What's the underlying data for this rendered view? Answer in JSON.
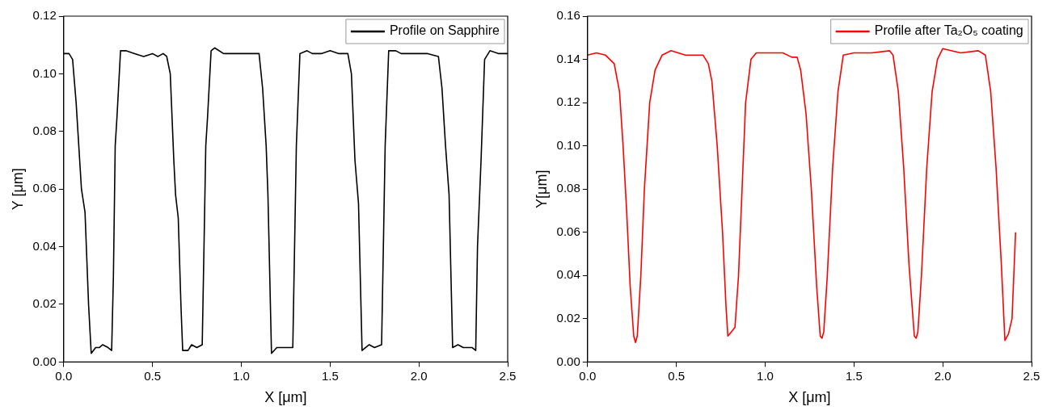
{
  "chart_data": [
    {
      "type": "line",
      "xlabel": "X [μm]",
      "ylabel": "Y [μm]",
      "xlim": [
        0,
        2.5
      ],
      "ylim": [
        0,
        0.12
      ],
      "xticks": [
        {
          "value": 0,
          "label": "0.0"
        },
        {
          "value": 0.5,
          "label": "0.5"
        },
        {
          "value": 1,
          "label": "1.0"
        },
        {
          "value": 1.5,
          "label": "1.5"
        },
        {
          "value": 2,
          "label": "2.0"
        },
        {
          "value": 2.5,
          "label": "2.5"
        }
      ],
      "yticks": [
        {
          "value": 0,
          "label": "0.00"
        },
        {
          "value": 0.02,
          "label": "0.02"
        },
        {
          "value": 0.04,
          "label": "0.04"
        },
        {
          "value": 0.06,
          "label": "0.06"
        },
        {
          "value": 0.08,
          "label": "0.08"
        },
        {
          "value": 0.1,
          "label": "0.10"
        },
        {
          "value": 0.12,
          "label": "0.12"
        }
      ],
      "grid": false,
      "legend": "top right",
      "line_style": "solid",
      "marker": "none",
      "series": [
        {
          "name": "Profile on Sapphire",
          "color": "#000000",
          "x": [
            0,
            0.03,
            0.05,
            0.07,
            0.1,
            0.12,
            0.14,
            0.155,
            0.18,
            0.2,
            0.22,
            0.25,
            0.27,
            0.28,
            0.29,
            0.3,
            0.32,
            0.35,
            0.4,
            0.45,
            0.5,
            0.53,
            0.56,
            0.58,
            0.6,
            0.62,
            0.63,
            0.645,
            0.66,
            0.67,
            0.7,
            0.72,
            0.75,
            0.78,
            0.79,
            0.8,
            0.81,
            0.83,
            0.85,
            0.9,
            0.95,
            1,
            1.05,
            1.1,
            1.12,
            1.14,
            1.15,
            1.17,
            1.2,
            1.25,
            1.29,
            1.3,
            1.31,
            1.33,
            1.37,
            1.4,
            1.45,
            1.5,
            1.55,
            1.6,
            1.62,
            1.64,
            1.66,
            1.68,
            1.72,
            1.75,
            1.79,
            1.8,
            1.81,
            1.83,
            1.87,
            1.9,
            1.95,
            2,
            2.05,
            2.11,
            2.13,
            2.15,
            2.17,
            2.19,
            2.22,
            2.25,
            2.3,
            2.32,
            2.33,
            2.35,
            2.37,
            2.4,
            2.45,
            2.5
          ],
          "values": [
            0.107,
            0.107,
            0.105,
            0.09,
            0.06,
            0.052,
            0.02,
            0.003,
            0.005,
            0.005,
            0.006,
            0.005,
            0.004,
            0.03,
            0.075,
            0.085,
            0.108,
            0.108,
            0.107,
            0.106,
            0.107,
            0.106,
            0.107,
            0.106,
            0.1,
            0.07,
            0.058,
            0.05,
            0.02,
            0.004,
            0.004,
            0.006,
            0.005,
            0.006,
            0.04,
            0.075,
            0.085,
            0.108,
            0.109,
            0.107,
            0.107,
            0.107,
            0.107,
            0.107,
            0.095,
            0.075,
            0.058,
            0.003,
            0.005,
            0.005,
            0.005,
            0.04,
            0.075,
            0.107,
            0.108,
            0.107,
            0.107,
            0.108,
            0.107,
            0.107,
            0.1,
            0.07,
            0.055,
            0.004,
            0.006,
            0.005,
            0.006,
            0.04,
            0.075,
            0.108,
            0.108,
            0.107,
            0.107,
            0.107,
            0.107,
            0.106,
            0.095,
            0.075,
            0.058,
            0.005,
            0.006,
            0.005,
            0.005,
            0.004,
            0.04,
            0.07,
            0.105,
            0.108,
            0.107,
            0.107
          ]
        }
      ]
    },
    {
      "type": "line",
      "xlabel": "X [μm]",
      "ylabel": "Y[μm]",
      "xlim": [
        0,
        2.5
      ],
      "ylim": [
        0,
        0.16
      ],
      "xticks": [
        {
          "value": 0,
          "label": "0.0"
        },
        {
          "value": 0.5,
          "label": "0.5"
        },
        {
          "value": 1,
          "label": "1.0"
        },
        {
          "value": 1.5,
          "label": "1.5"
        },
        {
          "value": 2,
          "label": "2.0"
        },
        {
          "value": 2.5,
          "label": "2.5"
        }
      ],
      "yticks": [
        {
          "value": 0,
          "label": "0.00"
        },
        {
          "value": 0.02,
          "label": "0.02"
        },
        {
          "value": 0.04,
          "label": "0.04"
        },
        {
          "value": 0.06,
          "label": "0.06"
        },
        {
          "value": 0.08,
          "label": "0.08"
        },
        {
          "value": 0.1,
          "label": "0.10"
        },
        {
          "value": 0.12,
          "label": "0.12"
        },
        {
          "value": 0.14,
          "label": "0.14"
        },
        {
          "value": 0.16,
          "label": "0.16"
        }
      ],
      "grid": false,
      "legend": "top right",
      "line_style": "solid",
      "marker": "none",
      "series": [
        {
          "name": "Profile after Ta₂O₅ coating",
          "color": "#ff0000",
          "x": [
            0,
            0.05,
            0.1,
            0.15,
            0.18,
            0.2,
            0.22,
            0.24,
            0.26,
            0.27,
            0.28,
            0.3,
            0.32,
            0.35,
            0.38,
            0.42,
            0.47,
            0.55,
            0.65,
            0.68,
            0.7,
            0.73,
            0.76,
            0.78,
            0.79,
            0.81,
            0.83,
            0.85,
            0.87,
            0.89,
            0.92,
            0.95,
            1,
            1.1,
            1.15,
            1.18,
            1.2,
            1.23,
            1.26,
            1.29,
            1.31,
            1.32,
            1.33,
            1.35,
            1.38,
            1.41,
            1.44,
            1.5,
            1.6,
            1.7,
            1.72,
            1.75,
            1.78,
            1.81,
            1.84,
            1.85,
            1.86,
            1.88,
            1.91,
            1.94,
            1.97,
            2,
            2.1,
            2.2,
            2.24,
            2.27,
            2.3,
            2.33,
            2.35,
            2.37,
            2.39,
            2.4,
            2.41
          ],
          "values": [
            0.142,
            0.143,
            0.142,
            0.138,
            0.125,
            0.1,
            0.07,
            0.035,
            0.012,
            0.009,
            0.012,
            0.04,
            0.08,
            0.12,
            0.135,
            0.142,
            0.144,
            0.142,
            0.142,
            0.138,
            0.13,
            0.1,
            0.06,
            0.025,
            0.012,
            0.014,
            0.016,
            0.04,
            0.08,
            0.12,
            0.14,
            0.143,
            0.143,
            0.143,
            0.141,
            0.141,
            0.135,
            0.115,
            0.08,
            0.035,
            0.012,
            0.011,
            0.014,
            0.04,
            0.09,
            0.125,
            0.142,
            0.143,
            0.143,
            0.144,
            0.142,
            0.125,
            0.09,
            0.045,
            0.012,
            0.011,
            0.014,
            0.04,
            0.09,
            0.125,
            0.14,
            0.145,
            0.143,
            0.144,
            0.142,
            0.125,
            0.09,
            0.045,
            0.01,
            0.013,
            0.02,
            0.04,
            0.06
          ]
        }
      ]
    }
  ]
}
